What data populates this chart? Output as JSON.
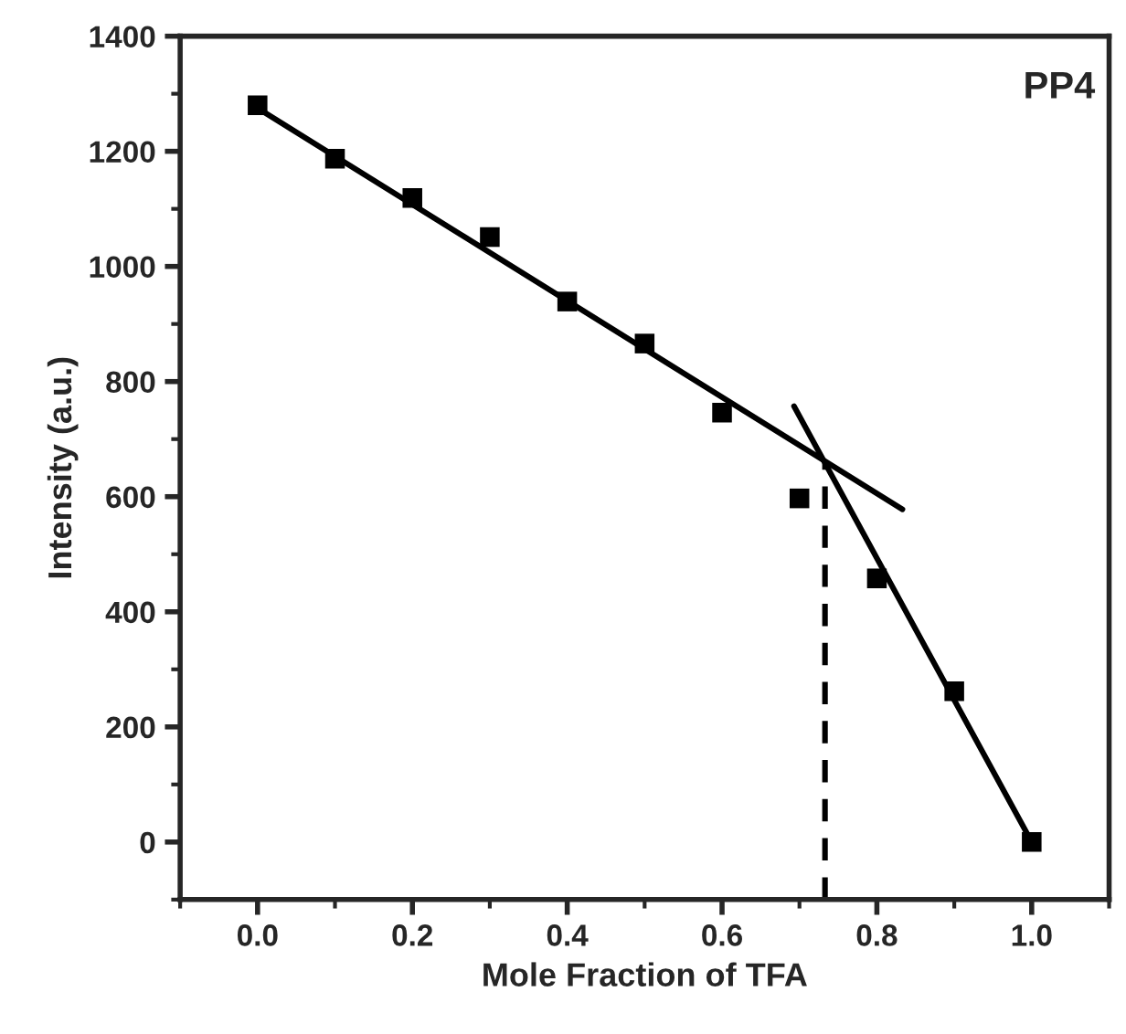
{
  "chart_data": {
    "type": "scatter",
    "xlabel": "Mole Fraction of TFA",
    "ylabel": "Intensity (a.u.)",
    "xlim": [
      -0.1,
      1.1
    ],
    "ylim": [
      -100,
      1400
    ],
    "xticks": [
      {
        "value": 0.0,
        "label": "0.0"
      },
      0.2,
      0.4,
      0.6,
      0.8,
      {
        "value": 1.0,
        "label": "1.0"
      }
    ],
    "yticks": [
      0,
      200,
      400,
      600,
      800,
      1000,
      1200,
      1400
    ],
    "grid": false,
    "legend": false,
    "annotations": [
      "PP4"
    ],
    "series": [
      {
        "marker": "square",
        "color": "#000000",
        "x": [
          0.0,
          0.1,
          0.2,
          0.3,
          0.4,
          0.5,
          0.6,
          0.7,
          0.8,
          0.9,
          1.0
        ],
        "values": [
          1280,
          1187,
          1119,
          1051,
          939,
          866,
          746,
          597,
          458,
          262,
          0
        ]
      },
      {
        "type": "line",
        "color": "#000000",
        "line_style": "solid",
        "x": [
          0.0,
          0.833
        ],
        "values": [
          1275,
          578
        ]
      },
      {
        "type": "line",
        "color": "#000000",
        "line_style": "solid",
        "x": [
          0.693,
          1.0
        ],
        "values": [
          757,
          0
        ]
      },
      {
        "type": "line",
        "color": "#000000",
        "line_style": "dashed",
        "x": [
          0.733,
          0.733
        ],
        "values": [
          -100,
          658
        ]
      }
    ]
  }
}
